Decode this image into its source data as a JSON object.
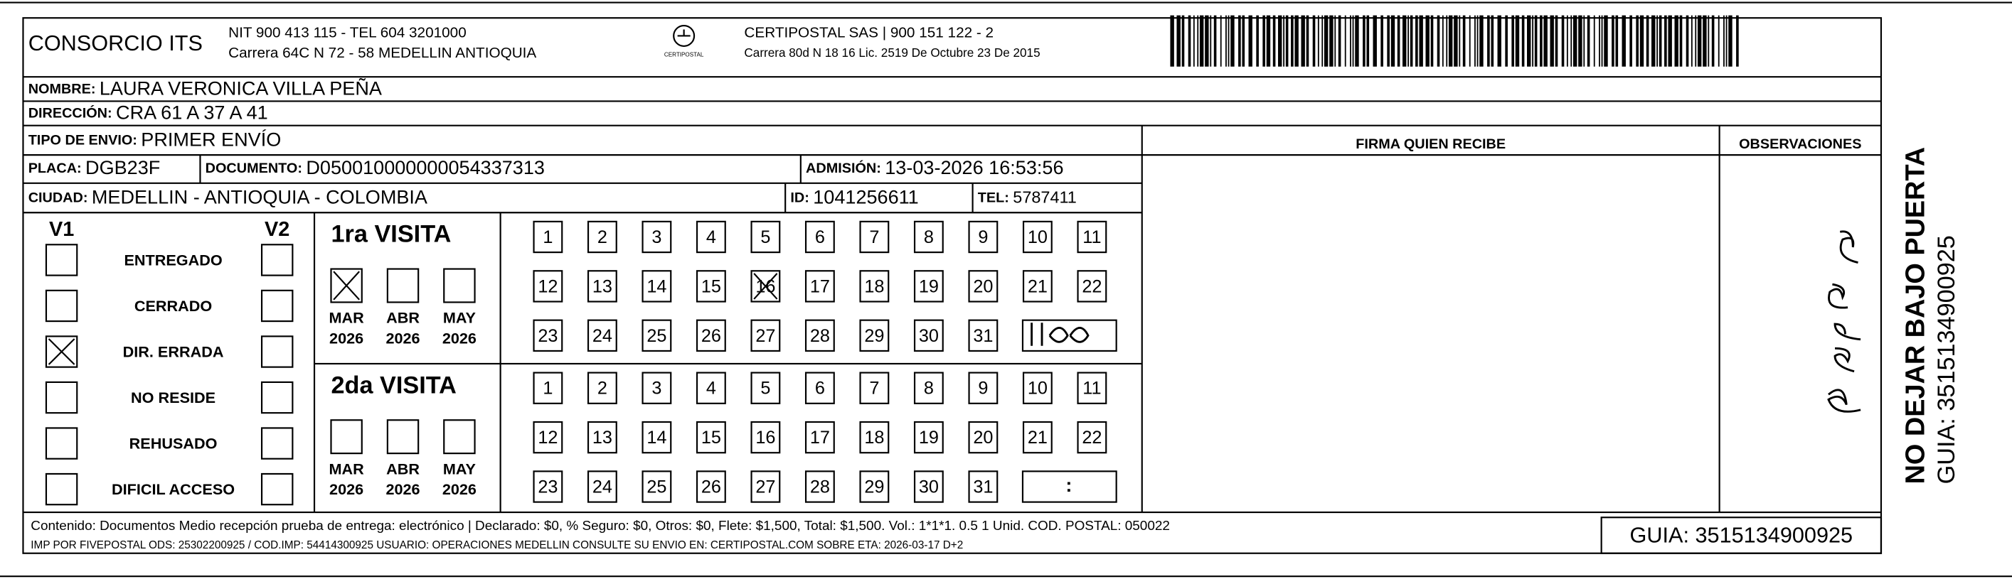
{
  "header": {
    "company": "CONSORCIO ITS",
    "nit": "NIT 900 413 115 - TEL 604 3201000",
    "address": "Carrera 64C N 72 - 58 MEDELLIN ANTIOQUIA",
    "logo_text": "CERTIPOSTAL",
    "carrier": "CERTIPOSTAL SAS | 900 151 122 - 2",
    "carrier_address": "Carrera 80d N 18 16  Lic. 2519 De Octubre 23 De 2015"
  },
  "fields": {
    "nombre": {
      "label": "NOMBRE:",
      "value": "LAURA VERONICA VILLA PEÑA"
    },
    "direccion": {
      "label": "DIRECCIÓN:",
      "value": "CRA 61 A 37 A 41"
    },
    "tipo": {
      "label": "TIPO DE ENVIO:",
      "value": "PRIMER ENVÍO"
    },
    "placa": {
      "label": "PLACA:",
      "value": "DGB23F"
    },
    "documento": {
      "label": "DOCUMENTO:",
      "value": "D050010000000054337313"
    },
    "admision": {
      "label": "ADMISIÓN:",
      "value": "13-03-2026 16:53:56"
    },
    "ciudad": {
      "label": "CIUDAD:",
      "value": "MEDELLIN - ANTIOQUIA - COLOMBIA"
    },
    "id": {
      "label": "ID:",
      "value": "1041256611"
    },
    "tel": {
      "label": "TEL:",
      "value": "5787411"
    }
  },
  "firma": "FIRMA QUIEN RECIBE",
  "observaciones": "OBSERVACIONES",
  "status": {
    "v1": "V1",
    "v2": "V2",
    "items": [
      "ENTREGADO",
      "CERRADO",
      "DIR. ERRADA",
      "NO RESIDE",
      "REHUSADO",
      "DIFICIL ACCESO"
    ]
  },
  "visits": [
    {
      "title": "1ra VISITA",
      "months": [
        {
          "month": "MAR",
          "year": "2026"
        },
        {
          "month": "ABR",
          "year": "2026"
        },
        {
          "month": "MAY",
          "year": "2026"
        }
      ],
      "days": [
        1,
        2,
        3,
        4,
        5,
        6,
        7,
        8,
        9,
        10,
        11,
        12,
        13,
        14,
        15,
        16,
        17,
        18,
        19,
        20,
        21,
        22,
        23,
        24,
        25,
        26,
        27,
        28,
        29,
        30,
        31
      ]
    },
    {
      "title": "2da VISITA",
      "months": [
        {
          "month": "MAR",
          "year": "2026"
        },
        {
          "month": "ABR",
          "year": "2026"
        },
        {
          "month": "MAY",
          "year": "2026"
        }
      ],
      "days": [
        1,
        2,
        3,
        4,
        5,
        6,
        7,
        8,
        9,
        10,
        11,
        12,
        13,
        14,
        15,
        16,
        17,
        18,
        19,
        20,
        21,
        22,
        23,
        24,
        25,
        26,
        27,
        28,
        29,
        30,
        31
      ],
      "time": ":"
    }
  ],
  "side": {
    "notice": "NO DEJAR BAJO PUERTA",
    "guia": "GUIA: 3515134900925"
  },
  "footer": {
    "contenido": "Contenido: Documentos Medio recepción prueba de entrega: electrónico | Declarado: $0, % Seguro: $0, Otros: $0, Flete: $1,500, Total: $1,500. Vol.: 1*1*1. 0.5  1 Unid. COD. POSTAL: 050022",
    "imp": "IMP POR FIVEPOSTAL ODS: 25302200925 / COD.IMP: 54414300925 USUARIO: OPERACIONES MEDELLIN CONSULTE SU ENVIO EN: CERTIPOSTAL.COM SOBRE ETA: 2026-03-17 D+2",
    "guia": "GUIA: 3515134900925"
  }
}
